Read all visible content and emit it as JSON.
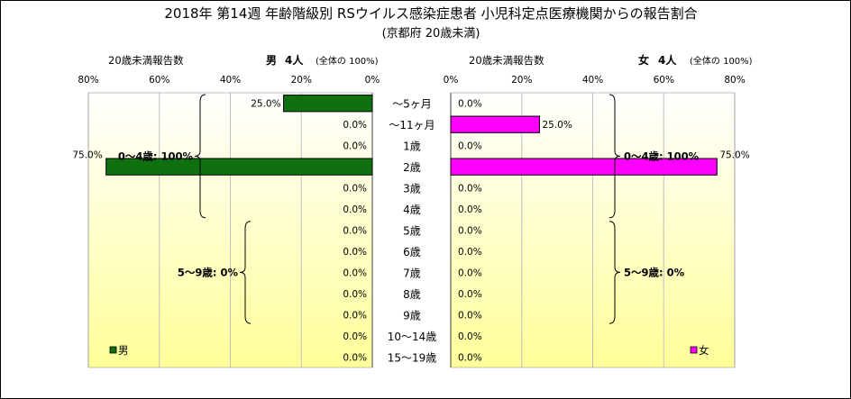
{
  "chart_data": {
    "type": "bar",
    "title": "2018年 第14週 年齢階級別 RSウイルス感染症患者 小児科定点医療機関からの報告割合",
    "subtitle": "(京都府 20歳未満)",
    "categories": [
      "～5ヶ月",
      "～11ヶ月",
      "1歳",
      "2歳",
      "3歳",
      "4歳",
      "5歳",
      "6歳",
      "7歳",
      "8歳",
      "9歳",
      "10～14歳",
      "15～19歳"
    ],
    "xlim": [
      0,
      80
    ],
    "tick_values": [
      0,
      20,
      40,
      60,
      80
    ],
    "tick_suffix": "%",
    "colors": {
      "male_bar": "#0e700e",
      "female_bar": "#ff00ff",
      "bg_top": "#ffffff",
      "bg_bottom": "#ffff99"
    },
    "panels": [
      {
        "side": "left",
        "report_label": "20歳未満報告数",
        "sex_label": "男",
        "count_label": "4人",
        "total_label": "(全体の 100%)",
        "legend": "男",
        "values": [
          25.0,
          0.0,
          0.0,
          75.0,
          0.0,
          0.0,
          0.0,
          0.0,
          0.0,
          0.0,
          0.0,
          0.0,
          0.0
        ],
        "groups": [
          {
            "label": "0～4歳: 100%",
            "from": 0,
            "to": 5
          },
          {
            "label": "5～9歳: 0%",
            "from": 6,
            "to": 10
          }
        ]
      },
      {
        "side": "right",
        "report_label": "20歳未満報告数",
        "sex_label": "女",
        "count_label": "4人",
        "total_label": "(全体の 100%)",
        "legend": "女",
        "values": [
          0.0,
          25.0,
          0.0,
          75.0,
          0.0,
          0.0,
          0.0,
          0.0,
          0.0,
          0.0,
          0.0,
          0.0,
          0.0
        ],
        "groups": [
          {
            "label": "0～4歳: 100%",
            "from": 0,
            "to": 5
          },
          {
            "label": "5～9歳: 0%",
            "from": 6,
            "to": 10
          }
        ]
      }
    ]
  }
}
